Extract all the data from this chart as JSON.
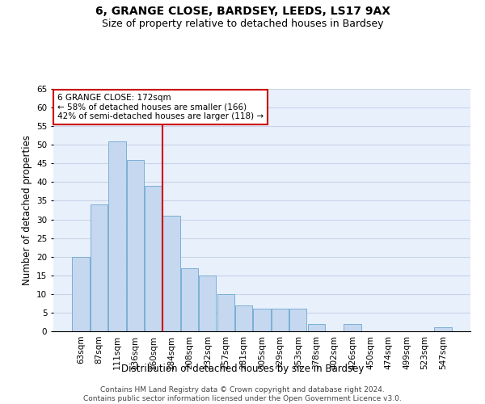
{
  "title": "6, GRANGE CLOSE, BARDSEY, LEEDS, LS17 9AX",
  "subtitle": "Size of property relative to detached houses in Bardsey",
  "xlabel": "Distribution of detached houses by size in Bardsey",
  "ylabel": "Number of detached properties",
  "categories": [
    "63sqm",
    "87sqm",
    "111sqm",
    "136sqm",
    "160sqm",
    "184sqm",
    "208sqm",
    "232sqm",
    "257sqm",
    "281sqm",
    "305sqm",
    "329sqm",
    "353sqm",
    "378sqm",
    "402sqm",
    "426sqm",
    "450sqm",
    "474sqm",
    "499sqm",
    "523sqm",
    "547sqm"
  ],
  "values": [
    20,
    34,
    51,
    46,
    39,
    31,
    17,
    15,
    10,
    7,
    6,
    6,
    6,
    2,
    0,
    2,
    0,
    0,
    0,
    0,
    1
  ],
  "bar_color": "#c5d8f0",
  "bar_edge_color": "#7bafd4",
  "vline_color": "#cc0000",
  "vline_x": 4.5,
  "annotation_box_color": "#ffffff",
  "annotation_box_edge_color": "#cc0000",
  "annotation_line1": "6 GRANGE CLOSE: 172sqm",
  "annotation_line2": "← 58% of detached houses are smaller (166)",
  "annotation_line3": "42% of semi-detached houses are larger (118) →",
  "footer1": "Contains HM Land Registry data © Crown copyright and database right 2024.",
  "footer2": "Contains public sector information licensed under the Open Government Licence v3.0.",
  "background_color": "#e8f0fb",
  "grid_color": "#c8d4e8",
  "ylim": [
    0,
    65
  ],
  "yticks": [
    0,
    5,
    10,
    15,
    20,
    25,
    30,
    35,
    40,
    45,
    50,
    55,
    60,
    65
  ],
  "title_fontsize": 10,
  "subtitle_fontsize": 9,
  "xlabel_fontsize": 8.5,
  "ylabel_fontsize": 8.5,
  "tick_fontsize": 7.5,
  "annotation_fontsize": 7.5,
  "footer_fontsize": 6.5
}
